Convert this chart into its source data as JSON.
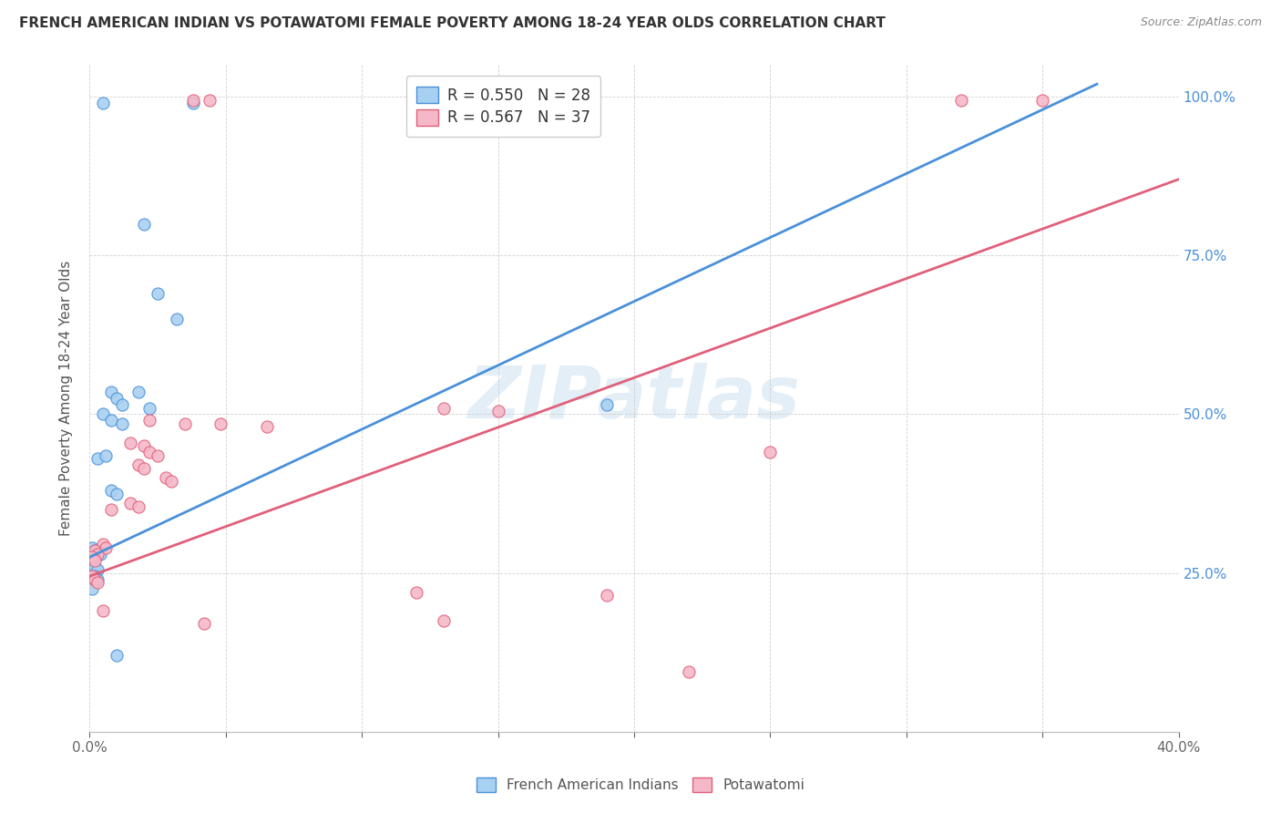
{
  "title": "FRENCH AMERICAN INDIAN VS POTAWATOMI FEMALE POVERTY AMONG 18-24 YEAR OLDS CORRELATION CHART",
  "source": "Source: ZipAtlas.com",
  "ylabel": "Female Poverty Among 18-24 Year Olds",
  "xlim": [
    0.0,
    0.4
  ],
  "ylim": [
    0.0,
    1.05
  ],
  "ytick_positions": [
    0.0,
    0.25,
    0.5,
    0.75,
    1.0
  ],
  "yticklabels_right": [
    "",
    "25.0%",
    "50.0%",
    "75.0%",
    "100.0%"
  ],
  "legend_line1": "R = 0.550   N = 28",
  "legend_line2": "R = 0.567   N = 37",
  "color_blue": "#a8d0f0",
  "color_pink": "#f5b8c8",
  "line_blue": "#4a90d9",
  "line_pink": "#e0607a",
  "watermark": "ZIPatlas",
  "blue_line": [
    [
      0.0,
      0.275
    ],
    [
      0.37,
      1.02
    ]
  ],
  "pink_line": [
    [
      0.0,
      0.245
    ],
    [
      0.4,
      0.87
    ]
  ],
  "blue_points": [
    [
      0.005,
      0.99
    ],
    [
      0.038,
      0.99
    ],
    [
      0.02,
      0.8
    ],
    [
      0.025,
      0.69
    ],
    [
      0.032,
      0.65
    ],
    [
      0.008,
      0.535
    ],
    [
      0.018,
      0.535
    ],
    [
      0.01,
      0.525
    ],
    [
      0.012,
      0.515
    ],
    [
      0.022,
      0.51
    ],
    [
      0.005,
      0.5
    ],
    [
      0.008,
      0.49
    ],
    [
      0.012,
      0.485
    ],
    [
      0.003,
      0.43
    ],
    [
      0.006,
      0.435
    ],
    [
      0.008,
      0.38
    ],
    [
      0.01,
      0.375
    ],
    [
      0.001,
      0.29
    ],
    [
      0.002,
      0.285
    ],
    [
      0.004,
      0.28
    ],
    [
      0.001,
      0.265
    ],
    [
      0.002,
      0.26
    ],
    [
      0.003,
      0.255
    ],
    [
      0.002,
      0.245
    ],
    [
      0.003,
      0.24
    ],
    [
      0.001,
      0.225
    ],
    [
      0.19,
      0.515
    ],
    [
      0.01,
      0.12
    ]
  ],
  "pink_points": [
    [
      0.038,
      0.995
    ],
    [
      0.044,
      0.995
    ],
    [
      0.13,
      0.51
    ],
    [
      0.15,
      0.505
    ],
    [
      0.022,
      0.49
    ],
    [
      0.035,
      0.485
    ],
    [
      0.048,
      0.485
    ],
    [
      0.065,
      0.48
    ],
    [
      0.015,
      0.455
    ],
    [
      0.02,
      0.45
    ],
    [
      0.022,
      0.44
    ],
    [
      0.025,
      0.435
    ],
    [
      0.018,
      0.42
    ],
    [
      0.02,
      0.415
    ],
    [
      0.028,
      0.4
    ],
    [
      0.03,
      0.395
    ],
    [
      0.015,
      0.36
    ],
    [
      0.018,
      0.355
    ],
    [
      0.008,
      0.35
    ],
    [
      0.005,
      0.295
    ],
    [
      0.006,
      0.29
    ],
    [
      0.002,
      0.285
    ],
    [
      0.003,
      0.28
    ],
    [
      0.001,
      0.275
    ],
    [
      0.002,
      0.27
    ],
    [
      0.001,
      0.245
    ],
    [
      0.002,
      0.24
    ],
    [
      0.003,
      0.235
    ],
    [
      0.12,
      0.22
    ],
    [
      0.19,
      0.215
    ],
    [
      0.13,
      0.175
    ],
    [
      0.042,
      0.17
    ],
    [
      0.005,
      0.19
    ],
    [
      0.25,
      0.44
    ],
    [
      0.22,
      0.095
    ],
    [
      0.32,
      0.995
    ],
    [
      0.35,
      0.995
    ]
  ]
}
